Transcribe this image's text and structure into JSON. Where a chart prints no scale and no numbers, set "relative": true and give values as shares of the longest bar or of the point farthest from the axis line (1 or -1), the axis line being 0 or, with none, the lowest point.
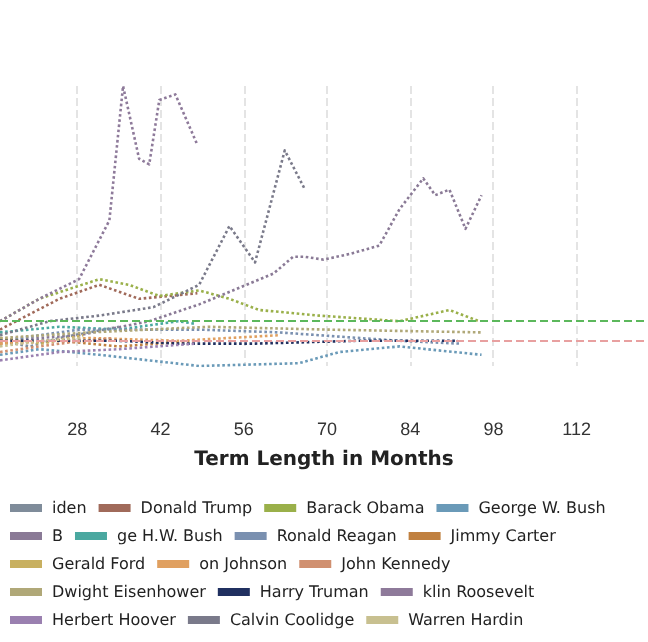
{
  "chart_data": {
    "type": "line",
    "xlabel": "Term Length in Months",
    "relative": true,
    "line_style": "dotted",
    "marker": "none",
    "grid": "x",
    "legend": "bottom",
    "xlim": [
      15,
      124
    ],
    "xticks": [
      28,
      42,
      56,
      70,
      84,
      98,
      112
    ],
    "ref_lines": [
      {
        "axis": "y",
        "value": 0.16,
        "color": "#5cb85c",
        "line_style": "dashed"
      },
      {
        "axis": "y",
        "value": 0.09,
        "color": "#e8a0a0",
        "line_style": "dashed"
      }
    ],
    "series": [
      {
        "name": "iden",
        "color": "#7f8c9a",
        "x": [
          15,
          20,
          25,
          30,
          35
        ],
        "values": [
          0.09,
          0.07,
          0.1,
          0.12,
          0.14
        ]
      },
      {
        "name": "Donald Trump",
        "color": "#a06a5a",
        "x": [
          15,
          25,
          31.7,
          38.4,
          43.4,
          48.2
        ],
        "values": [
          0.13,
          0.24,
          0.29,
          0.24,
          0.25,
          0.26
        ]
      },
      {
        "name": "Barack Obama",
        "color": "#9ab04a",
        "x": [
          15,
          21.6,
          31.7,
          36.7,
          41.8,
          48.5,
          53.6,
          58.6,
          68.7,
          82.2,
          90.6,
          95.6
        ],
        "values": [
          0.16,
          0.24,
          0.31,
          0.29,
          0.25,
          0.27,
          0.24,
          0.2,
          0.18,
          0.16,
          0.2,
          0.16
        ]
      },
      {
        "name": "George W. Bush",
        "color": "#6a9ab8",
        "x": [
          15,
          21.6,
          31.7,
          48.5,
          65.3,
          72.1,
          82.2,
          96
        ],
        "values": [
          0.04,
          0.06,
          0.04,
          0,
          0.01,
          0.05,
          0.07,
          0.04
        ]
      },
      {
        "name": "B",
        "color": "#8a7a96",
        "x": [
          15,
          28.3,
          40.1,
          48.5,
          61,
          64.3,
          66.3,
          69.4,
          73.8,
          78.8,
          82.2,
          86.2,
          88.2,
          90.6,
          93.3,
          96
        ],
        "values": [
          0.09,
          0.11,
          0.16,
          0.22,
          0.33,
          0.39,
          0.39,
          0.38,
          0.4,
          0.43,
          0.56,
          0.67,
          0.61,
          0.63,
          0.49,
          0.61
        ]
      },
      {
        "name": "ge H.W. Bush",
        "color": "#4aa8a0",
        "x": [
          15,
          25,
          35,
          45,
          48
        ],
        "values": [
          0.12,
          0.14,
          0.13,
          0.16,
          0.15
        ]
      },
      {
        "name": "Ronald Reagan",
        "color": "#7a90b0",
        "x": [
          15,
          28.3,
          48.5,
          61.9,
          82.2,
          92.3
        ],
        "values": [
          0.09,
          0.13,
          0.13,
          0.12,
          0.09,
          0.08
        ]
      },
      {
        "name": "Jimmy Carter",
        "color": "#c08040",
        "x": [
          15,
          25,
          35,
          48
        ],
        "values": [
          0.08,
          0.09,
          0.07,
          0.09
        ]
      },
      {
        "name": "Gerald Ford",
        "color": "#c8b060",
        "x": [
          15,
          22,
          29
        ],
        "values": [
          0.1,
          0.08,
          0.11
        ]
      },
      {
        "name": "on Johnson",
        "color": "#e0a060",
        "x": [
          15,
          30,
          45,
          62
        ],
        "values": [
          0.08,
          0.1,
          0.09,
          0.11
        ]
      },
      {
        "name": "John Kennedy",
        "color": "#d09070",
        "x": [
          15,
          25,
          34
        ],
        "values": [
          0.05,
          0.08,
          0.1
        ]
      },
      {
        "name": "Dwight Eisenhower",
        "color": "#b0a878",
        "x": [
          15,
          30,
          50,
          70,
          96
        ],
        "values": [
          0.1,
          0.12,
          0.14,
          0.13,
          0.12
        ]
      },
      {
        "name": "Harry Truman",
        "color": "#203060",
        "x": [
          15,
          25,
          35,
          45,
          58,
          75,
          92
        ],
        "values": [
          0.09,
          0.09,
          0.09,
          0.08,
          0.08,
          0.09,
          0.09
        ]
      },
      {
        "name": "klin Roosevelt",
        "color": "#8e7a9a",
        "x": [
          15,
          21.6,
          28.3,
          33.4,
          35.7,
          38.4,
          40.1,
          41.8,
          44.5,
          48.2
        ],
        "values": [
          0.16,
          0.24,
          0.31,
          0.52,
          1,
          0.74,
          0.72,
          0.95,
          0.97,
          0.79
        ]
      },
      {
        "name": "Herbert Hoover",
        "color": "#9a80b0",
        "x": [
          15,
          25,
          35,
          48
        ],
        "values": [
          0.02,
          0.05,
          0.06,
          0.08
        ]
      },
      {
        "name": "Calvin Coolidge",
        "color": "#7a7a8a",
        "x": [
          15,
          23.3,
          31.7,
          40.8,
          48.5,
          53.6,
          57.9,
          62.9,
          66.3
        ],
        "values": [
          0.11,
          0.16,
          0.18,
          0.21,
          0.29,
          0.5,
          0.37,
          0.77,
          0.63
        ]
      },
      {
        "name": "Warren Hardin",
        "color": "#c8c090",
        "x": [
          15,
          22,
          29
        ],
        "values": [
          0.07,
          0.09,
          0.1
        ]
      }
    ]
  }
}
